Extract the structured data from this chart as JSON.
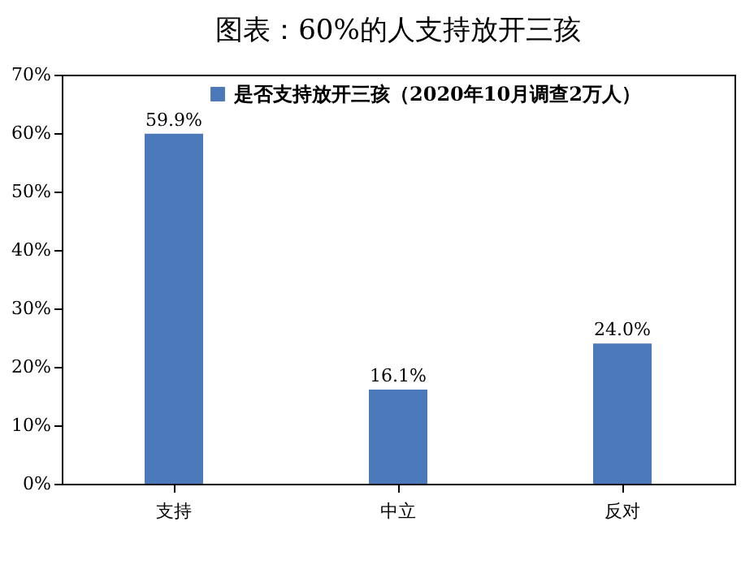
{
  "chart_data": {
    "type": "bar",
    "title": "图表：60%的人支持放开三孩",
    "categories": [
      "支持",
      "中立",
      "反对"
    ],
    "series": [
      {
        "name": "是否支持放开三孩（2020年10月调查2万人）",
        "color": "#4a78b8",
        "values": [
          59.9,
          16.1,
          24.0
        ],
        "value_labels": [
          "59.9%",
          "16.1%",
          "24.0%"
        ]
      }
    ],
    "ylim": [
      0,
      70
    ],
    "yticks": [
      {
        "value": 0,
        "label": "0%"
      },
      {
        "value": 10,
        "label": "10%"
      },
      {
        "value": 20,
        "label": "20%"
      },
      {
        "value": 30,
        "label": "30%"
      },
      {
        "value": 40,
        "label": "40%"
      },
      {
        "value": 50,
        "label": "50%"
      },
      {
        "value": 60,
        "label": "60%"
      },
      {
        "value": 70,
        "label": "70%"
      }
    ],
    "legend": "top",
    "grid": false
  }
}
